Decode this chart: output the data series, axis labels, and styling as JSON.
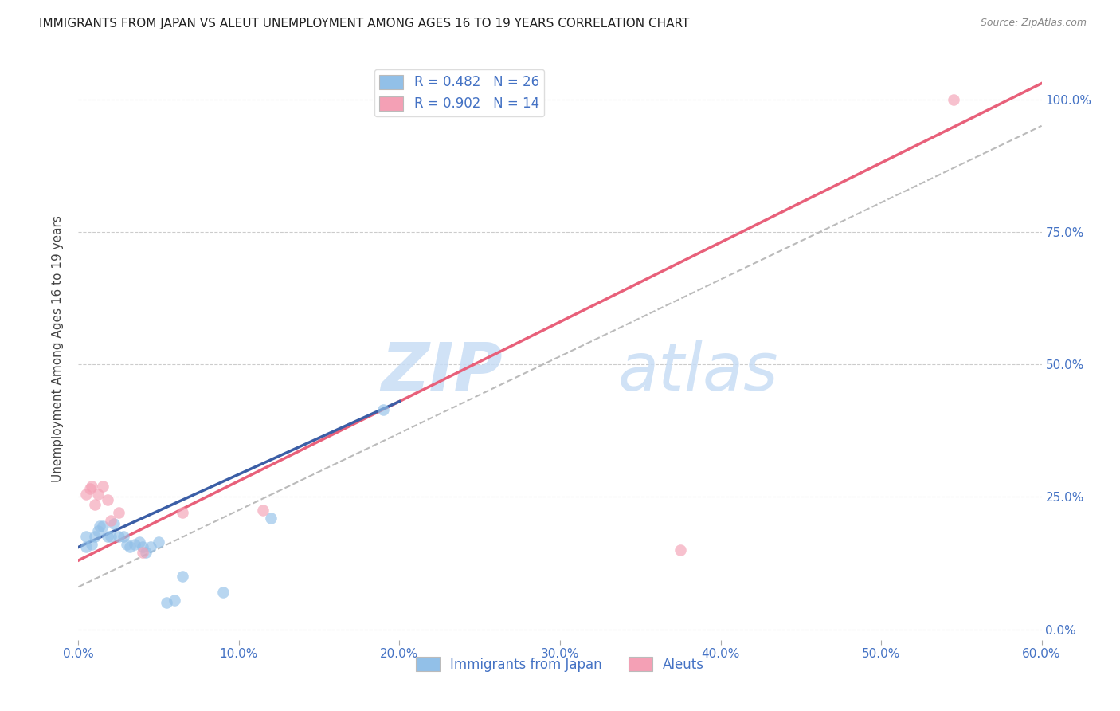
{
  "title": "IMMIGRANTS FROM JAPAN VS ALEUT UNEMPLOYMENT AMONG AGES 16 TO 19 YEARS CORRELATION CHART",
  "source": "Source: ZipAtlas.com",
  "xlabel_ticks": [
    "0.0%",
    "10.0%",
    "20.0%",
    "30.0%",
    "40.0%",
    "50.0%",
    "60.0%"
  ],
  "xlabel_vals": [
    0.0,
    0.1,
    0.2,
    0.3,
    0.4,
    0.5,
    0.6
  ],
  "ylabel_ticks": [
    "0.0%",
    "25.0%",
    "50.0%",
    "75.0%",
    "100.0%"
  ],
  "ylabel_vals": [
    0.0,
    0.25,
    0.5,
    0.75,
    1.0
  ],
  "ylabel_label": "Unemployment Among Ages 16 to 19 years",
  "xlim": [
    0.0,
    0.6
  ],
  "ylim": [
    -0.02,
    1.08
  ],
  "legend_label1": "R = 0.482   N = 26",
  "legend_label2": "R = 0.902   N = 14",
  "legend_bottom_label1": "Immigrants from Japan",
  "legend_bottom_label2": "Aleuts",
  "blue_color": "#92C0E8",
  "pink_color": "#F4A0B5",
  "blue_line_color": "#3B5EA6",
  "pink_line_color": "#E8607A",
  "dashed_line_color": "#BBBBBB",
  "title_color": "#222222",
  "axis_color": "#4472C4",
  "blue_scatter_x": [
    0.005,
    0.005,
    0.008,
    0.01,
    0.012,
    0.013,
    0.015,
    0.018,
    0.02,
    0.022,
    0.025,
    0.028,
    0.03,
    0.032,
    0.035,
    0.038,
    0.04,
    0.042,
    0.045,
    0.05,
    0.055,
    0.06,
    0.065,
    0.09,
    0.12,
    0.19
  ],
  "blue_scatter_y": [
    0.175,
    0.155,
    0.16,
    0.175,
    0.185,
    0.195,
    0.195,
    0.175,
    0.175,
    0.2,
    0.175,
    0.175,
    0.16,
    0.155,
    0.16,
    0.165,
    0.155,
    0.145,
    0.155,
    0.165,
    0.05,
    0.055,
    0.1,
    0.07,
    0.21,
    0.415
  ],
  "pink_scatter_x": [
    0.005,
    0.007,
    0.008,
    0.01,
    0.012,
    0.015,
    0.018,
    0.02,
    0.025,
    0.04,
    0.065,
    0.115,
    0.375,
    0.545
  ],
  "pink_scatter_y": [
    0.255,
    0.265,
    0.27,
    0.235,
    0.255,
    0.27,
    0.245,
    0.205,
    0.22,
    0.145,
    0.22,
    0.225,
    0.15,
    1.0
  ],
  "blue_trendline_x": [
    0.0,
    0.2
  ],
  "blue_trendline_y": [
    0.155,
    0.43
  ],
  "pink_trendline_x": [
    0.0,
    0.6
  ],
  "pink_trendline_y": [
    0.13,
    1.03
  ],
  "dashed_trendline_x": [
    0.0,
    0.6
  ],
  "dashed_trendline_y": [
    0.08,
    0.95
  ]
}
